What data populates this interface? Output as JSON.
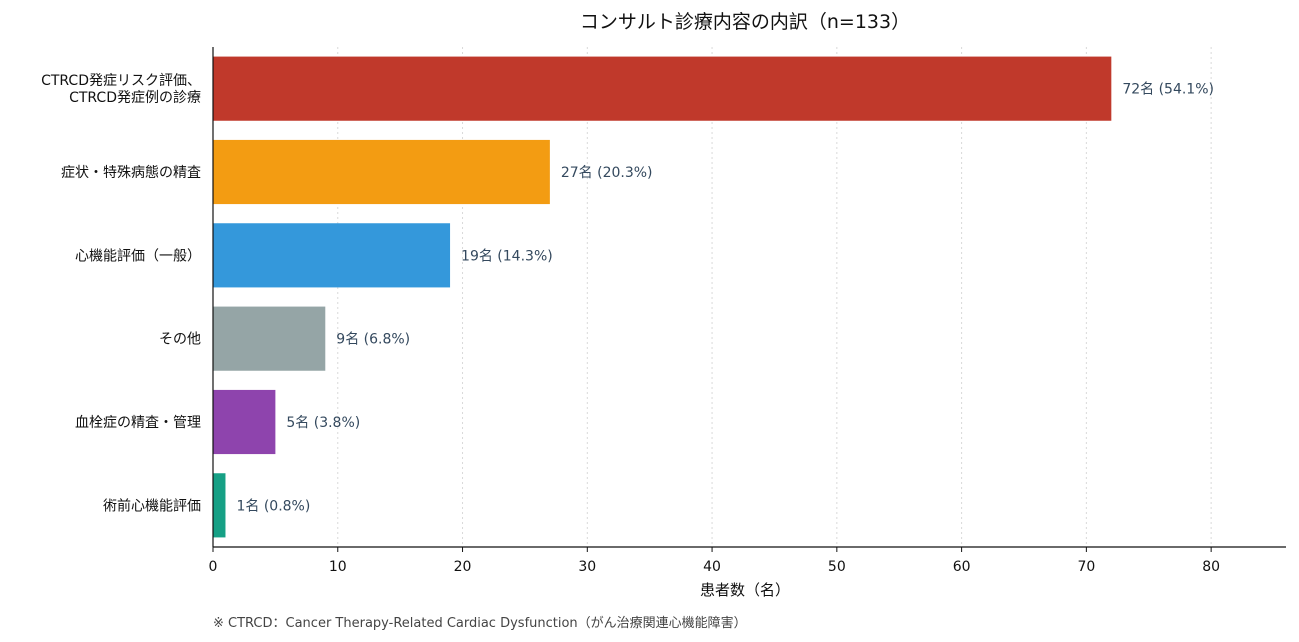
{
  "chart_data": {
    "type": "bar",
    "orientation": "horizontal",
    "title": "コンサルト診療内容の内訳（n=133）",
    "xlabel": "患者数（名）",
    "xlim": [
      0,
      86
    ],
    "xticks": [
      0,
      10,
      20,
      30,
      40,
      50,
      60,
      70,
      80
    ],
    "grid": "x-dotted",
    "categories": [
      [
        "CTRCD発症リスク評価、",
        "CTRCD発症例の診療"
      ],
      [
        "症状・特殊病態の精査"
      ],
      [
        "心機能評価（一般）"
      ],
      [
        "その他"
      ],
      [
        "血栓症の精査・管理"
      ],
      [
        "術前心機能評価"
      ]
    ],
    "values": [
      72,
      27,
      19,
      9,
      5,
      1
    ],
    "data_labels": [
      "72名 (54.1%)",
      "27名 (20.3%)",
      "19名 (14.3%)",
      "9名 (6.8%)",
      "5名 (3.8%)",
      "1名 (0.8%)"
    ],
    "colors": [
      "#c0392b",
      "#f39c12",
      "#3498db",
      "#95a5a6",
      "#8e44ad",
      "#16a085"
    ],
    "footnote": "※ CTRCD：Cancer Therapy-Related Cardiac Dysfunction（がん治療関連心機能障害）"
  }
}
